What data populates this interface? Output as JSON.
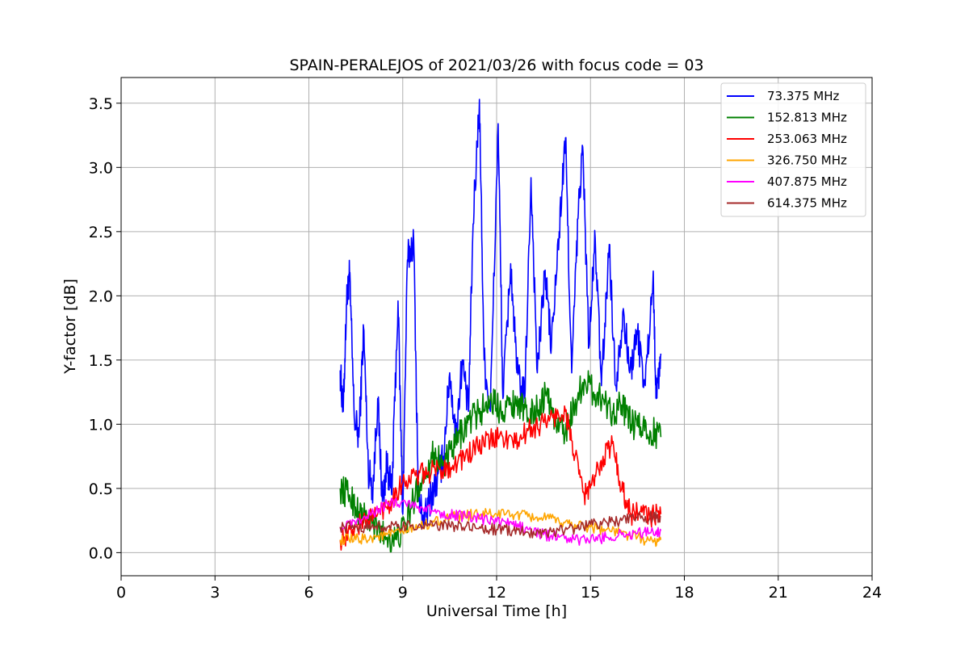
{
  "chart_data": {
    "type": "line",
    "title": "SPAIN-PERALEJOS of 2021/03/26 with focus code = 03",
    "xlabel": "Universal Time [h]",
    "ylabel": "Y-factor [dB]",
    "xlim": [
      0,
      24
    ],
    "ylim": [
      -0.18,
      3.7
    ],
    "xticks": [
      0,
      3,
      6,
      9,
      12,
      15,
      18,
      21,
      24
    ],
    "yticks": [
      0.0,
      0.5,
      1.0,
      1.5,
      2.0,
      2.5,
      3.0,
      3.5
    ],
    "xtick_labels": [
      "0",
      "3",
      "6",
      "9",
      "12",
      "15",
      "18",
      "21",
      "24"
    ],
    "ytick_labels": [
      "0.0",
      "0.5",
      "1.0",
      "1.5",
      "2.0",
      "2.5",
      "3.0",
      "3.5"
    ],
    "grid": true,
    "legend_position": "top-right",
    "series": [
      {
        "name": " 73.375 MHz",
        "color": "#0000ff",
        "x": [
          7.0,
          7.1,
          7.2,
          7.3,
          7.45,
          7.6,
          7.75,
          7.9,
          8.05,
          8.2,
          8.35,
          8.5,
          8.65,
          8.85,
          9.0,
          9.15,
          9.35,
          9.5,
          9.7,
          9.9,
          10.1,
          10.3,
          10.5,
          10.7,
          10.9,
          11.1,
          11.25,
          11.45,
          11.6,
          11.8,
          12.05,
          12.2,
          12.45,
          12.65,
          12.9,
          13.1,
          13.3,
          13.55,
          13.75,
          14.0,
          14.2,
          14.4,
          14.6,
          14.75,
          14.95,
          15.15,
          15.35,
          15.6,
          15.8,
          16.05,
          16.25,
          16.5,
          16.75,
          17.0,
          17.1,
          17.25
        ],
        "y": [
          1.42,
          1.1,
          1.93,
          2.17,
          1.05,
          0.9,
          1.75,
          0.65,
          0.5,
          1.2,
          0.4,
          0.7,
          0.45,
          1.96,
          0.3,
          2.28,
          2.44,
          0.4,
          0.25,
          0.45,
          0.55,
          0.75,
          1.4,
          0.9,
          1.5,
          1.1,
          2.56,
          3.53,
          1.5,
          1.1,
          3.34,
          1.2,
          2.25,
          1.4,
          1.2,
          2.92,
          1.4,
          2.2,
          1.6,
          2.5,
          3.23,
          1.4,
          2.6,
          3.16,
          1.6,
          2.45,
          1.3,
          2.4,
          1.3,
          1.9,
          1.4,
          1.7,
          1.3,
          2.16,
          1.2,
          1.55
        ]
      },
      {
        "name": "152.813 MHz",
        "color": "#008000",
        "x": [
          7.0,
          7.3,
          7.6,
          7.9,
          8.2,
          8.5,
          8.8,
          9.1,
          9.4,
          9.7,
          10.0,
          10.3,
          10.6,
          10.9,
          11.2,
          11.5,
          11.8,
          12.1,
          12.4,
          12.7,
          13.0,
          13.3,
          13.6,
          13.9,
          14.2,
          14.5,
          14.8,
          15.1,
          15.4,
          15.7,
          16.0,
          16.3,
          16.6,
          16.9,
          17.25
        ],
        "y": [
          0.5,
          0.45,
          0.32,
          0.25,
          0.18,
          0.12,
          0.1,
          0.22,
          0.45,
          0.62,
          0.78,
          0.68,
          0.8,
          0.95,
          1.05,
          1.1,
          1.2,
          1.12,
          1.15,
          1.18,
          1.05,
          1.12,
          1.25,
          1.0,
          0.95,
          1.15,
          1.35,
          1.25,
          1.2,
          1.1,
          1.15,
          1.0,
          0.98,
          0.95,
          0.9
        ]
      },
      {
        "name": "253.063 MHz",
        "color": "#ff0000",
        "x": [
          7.0,
          7.4,
          7.8,
          8.2,
          8.6,
          9.0,
          9.4,
          9.8,
          10.2,
          10.6,
          11.0,
          11.4,
          11.8,
          12.2,
          12.6,
          13.0,
          13.4,
          13.8,
          14.2,
          14.5,
          14.8,
          15.1,
          15.4,
          15.7,
          16.0,
          16.3,
          16.6,
          16.9,
          17.25
        ],
        "y": [
          0.1,
          0.18,
          0.25,
          0.3,
          0.4,
          0.55,
          0.6,
          0.62,
          0.65,
          0.68,
          0.75,
          0.82,
          0.88,
          0.9,
          0.85,
          0.95,
          1.0,
          1.05,
          1.1,
          0.75,
          0.45,
          0.55,
          0.75,
          0.85,
          0.5,
          0.3,
          0.32,
          0.28,
          0.3
        ]
      },
      {
        "name": "326.750 MHz",
        "color": "#ffa500",
        "x": [
          7.0,
          7.5,
          8.0,
          8.5,
          9.0,
          9.5,
          10.0,
          10.5,
          11.0,
          11.5,
          12.0,
          12.5,
          13.0,
          13.5,
          14.0,
          14.5,
          15.0,
          15.5,
          16.0,
          16.5,
          17.0,
          17.25
        ],
        "y": [
          0.1,
          0.1,
          0.12,
          0.14,
          0.16,
          0.2,
          0.24,
          0.27,
          0.29,
          0.3,
          0.3,
          0.3,
          0.28,
          0.27,
          0.24,
          0.22,
          0.2,
          0.18,
          0.15,
          0.12,
          0.08,
          0.1
        ]
      },
      {
        "name": "407.875 MHz",
        "color": "#ff00ff",
        "x": [
          7.0,
          7.5,
          8.0,
          8.5,
          9.0,
          9.5,
          10.0,
          10.5,
          11.0,
          11.5,
          12.0,
          12.5,
          13.0,
          13.5,
          14.0,
          14.5,
          15.0,
          15.5,
          16.0,
          16.5,
          17.0,
          17.25
        ],
        "y": [
          0.2,
          0.22,
          0.3,
          0.38,
          0.4,
          0.36,
          0.32,
          0.3,
          0.28,
          0.26,
          0.24,
          0.22,
          0.18,
          0.14,
          0.12,
          0.1,
          0.1,
          0.12,
          0.14,
          0.15,
          0.16,
          0.17
        ]
      },
      {
        "name": "614.375 MHz",
        "color": "#a52a2a",
        "x": [
          7.0,
          7.5,
          8.0,
          8.5,
          9.0,
          9.5,
          10.0,
          10.5,
          11.0,
          11.5,
          12.0,
          12.5,
          13.0,
          13.5,
          14.0,
          14.5,
          15.0,
          15.5,
          16.0,
          16.5,
          17.0,
          17.25
        ],
        "y": [
          0.2,
          0.2,
          0.2,
          0.2,
          0.2,
          0.21,
          0.21,
          0.21,
          0.2,
          0.19,
          0.18,
          0.17,
          0.16,
          0.16,
          0.17,
          0.19,
          0.22,
          0.24,
          0.25,
          0.27,
          0.28,
          0.28
        ]
      }
    ]
  }
}
